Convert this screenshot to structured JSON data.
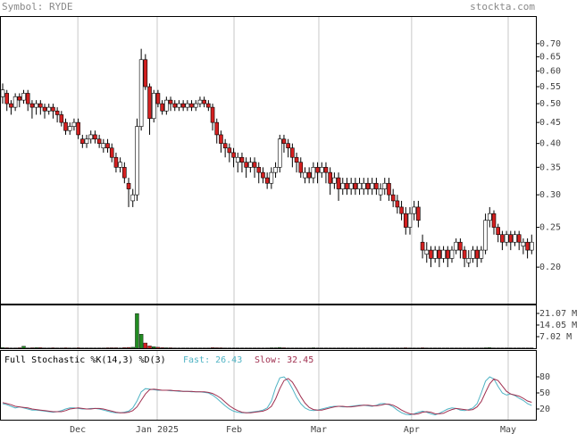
{
  "header": {
    "symbol": "Symbol: RYDE",
    "site": "stockta.com"
  },
  "chart_data": [
    {
      "type": "candlestick",
      "log_scale": true,
      "up_color": "#ffffff",
      "down_color": "#d42020",
      "xlim": [
        -0.64,
        127.0
      ],
      "ylim": [
        0.163,
        0.817
      ],
      "yticks": [
        {
          "value": 0.7,
          "label": "0.70"
        },
        0.65,
        {
          "value": 0.6,
          "label": "0.60"
        },
        0.55,
        {
          "value": 0.5,
          "label": "0.50"
        },
        0.45,
        {
          "value": 0.4,
          "label": "0.40"
        },
        0.35,
        {
          "value": 0.3,
          "label": "0.30"
        },
        0.25,
        {
          "value": 0.2,
          "label": "0.20"
        }
      ],
      "open": [
        0.52,
        0.53,
        0.5,
        0.49,
        0.52,
        0.51,
        0.53,
        0.5,
        0.49,
        0.5,
        0.49,
        0.48,
        0.49,
        0.48,
        0.47,
        0.45,
        0.43,
        0.44,
        0.45,
        0.41,
        0.4,
        0.41,
        0.42,
        0.41,
        0.39,
        0.4,
        0.39,
        0.37,
        0.35,
        0.35,
        0.32,
        0.29,
        0.3,
        0.44,
        0.64,
        0.55,
        0.46,
        0.53,
        0.5,
        0.48,
        0.51,
        0.5,
        0.49,
        0.5,
        0.49,
        0.5,
        0.49,
        0.5,
        0.51,
        0.5,
        0.49,
        0.45,
        0.42,
        0.4,
        0.39,
        0.38,
        0.36,
        0.37,
        0.36,
        0.35,
        0.36,
        0.35,
        0.34,
        0.33,
        0.32,
        0.34,
        0.35,
        0.41,
        0.4,
        0.39,
        0.37,
        0.36,
        0.33,
        0.34,
        0.33,
        0.35,
        0.34,
        0.35,
        0.34,
        0.32,
        0.33,
        0.31,
        0.32,
        0.31,
        0.32,
        0.31,
        0.31,
        0.32,
        0.31,
        0.32,
        0.3,
        0.31,
        0.32,
        0.3,
        0.29,
        0.28,
        0.27,
        0.25,
        0.27,
        0.28,
        0.23,
        0.215,
        0.22,
        0.21,
        0.22,
        0.21,
        0.22,
        0.21,
        0.22,
        0.23,
        0.22,
        0.205,
        0.21,
        0.22,
        0.21,
        0.22,
        0.26,
        0.27,
        0.25,
        0.24,
        0.23,
        0.24,
        0.23,
        0.24,
        0.225,
        0.23,
        0.22
      ],
      "high": [
        0.56,
        0.54,
        0.51,
        0.53,
        0.53,
        0.54,
        0.54,
        0.51,
        0.51,
        0.51,
        0.5,
        0.5,
        0.5,
        0.49,
        0.48,
        0.46,
        0.45,
        0.46,
        0.46,
        0.42,
        0.42,
        0.43,
        0.43,
        0.42,
        0.41,
        0.41,
        0.4,
        0.38,
        0.37,
        0.36,
        0.33,
        0.31,
        0.46,
        0.68,
        0.66,
        0.56,
        0.54,
        0.54,
        0.51,
        0.52,
        0.52,
        0.51,
        0.51,
        0.51,
        0.51,
        0.51,
        0.51,
        0.52,
        0.52,
        0.51,
        0.5,
        0.46,
        0.43,
        0.41,
        0.4,
        0.39,
        0.38,
        0.38,
        0.37,
        0.37,
        0.37,
        0.36,
        0.35,
        0.34,
        0.35,
        0.36,
        0.42,
        0.42,
        0.41,
        0.4,
        0.38,
        0.37,
        0.35,
        0.35,
        0.36,
        0.36,
        0.36,
        0.36,
        0.35,
        0.34,
        0.34,
        0.33,
        0.33,
        0.33,
        0.33,
        0.33,
        0.33,
        0.33,
        0.33,
        0.33,
        0.32,
        0.33,
        0.33,
        0.31,
        0.3,
        0.29,
        0.28,
        0.28,
        0.29,
        0.29,
        0.24,
        0.23,
        0.225,
        0.225,
        0.225,
        0.225,
        0.225,
        0.225,
        0.235,
        0.235,
        0.225,
        0.22,
        0.225,
        0.225,
        0.225,
        0.27,
        0.28,
        0.275,
        0.255,
        0.245,
        0.245,
        0.245,
        0.245,
        0.245,
        0.235,
        0.235,
        0.24
      ],
      "low": [
        0.5,
        0.48,
        0.47,
        0.48,
        0.49,
        0.5,
        0.48,
        0.46,
        0.47,
        0.47,
        0.46,
        0.47,
        0.46,
        0.45,
        0.44,
        0.42,
        0.42,
        0.43,
        0.41,
        0.39,
        0.39,
        0.4,
        0.4,
        0.39,
        0.38,
        0.38,
        0.36,
        0.34,
        0.34,
        0.32,
        0.28,
        0.28,
        0.29,
        0.43,
        0.54,
        0.42,
        0.45,
        0.49,
        0.47,
        0.47,
        0.48,
        0.48,
        0.48,
        0.48,
        0.48,
        0.48,
        0.48,
        0.49,
        0.49,
        0.48,
        0.43,
        0.4,
        0.38,
        0.37,
        0.36,
        0.35,
        0.34,
        0.34,
        0.33,
        0.34,
        0.33,
        0.32,
        0.32,
        0.31,
        0.31,
        0.33,
        0.34,
        0.38,
        0.37,
        0.35,
        0.34,
        0.33,
        0.32,
        0.32,
        0.32,
        0.32,
        0.33,
        0.32,
        0.3,
        0.31,
        0.29,
        0.3,
        0.3,
        0.3,
        0.3,
        0.3,
        0.3,
        0.3,
        0.3,
        0.3,
        0.29,
        0.3,
        0.29,
        0.28,
        0.27,
        0.26,
        0.24,
        0.24,
        0.26,
        0.25,
        0.21,
        0.205,
        0.2,
        0.205,
        0.2,
        0.205,
        0.2,
        0.205,
        0.215,
        0.21,
        0.2,
        0.2,
        0.205,
        0.2,
        0.205,
        0.215,
        0.25,
        0.24,
        0.23,
        0.22,
        0.225,
        0.22,
        0.225,
        0.22,
        0.215,
        0.21,
        0.215
      ],
      "close": [
        0.54,
        0.5,
        0.49,
        0.52,
        0.51,
        0.53,
        0.5,
        0.49,
        0.5,
        0.49,
        0.48,
        0.49,
        0.48,
        0.47,
        0.45,
        0.43,
        0.44,
        0.45,
        0.42,
        0.4,
        0.41,
        0.42,
        0.41,
        0.4,
        0.4,
        0.39,
        0.37,
        0.35,
        0.36,
        0.33,
        0.31,
        0.3,
        0.44,
        0.64,
        0.55,
        0.46,
        0.53,
        0.5,
        0.48,
        0.51,
        0.5,
        0.49,
        0.5,
        0.49,
        0.5,
        0.49,
        0.5,
        0.51,
        0.5,
        0.49,
        0.45,
        0.42,
        0.4,
        0.39,
        0.38,
        0.37,
        0.37,
        0.36,
        0.35,
        0.36,
        0.35,
        0.34,
        0.33,
        0.32,
        0.34,
        0.35,
        0.41,
        0.4,
        0.39,
        0.37,
        0.36,
        0.34,
        0.34,
        0.33,
        0.35,
        0.34,
        0.35,
        0.34,
        0.32,
        0.33,
        0.31,
        0.32,
        0.31,
        0.32,
        0.31,
        0.32,
        0.32,
        0.31,
        0.32,
        0.31,
        0.31,
        0.32,
        0.3,
        0.29,
        0.28,
        0.27,
        0.25,
        0.27,
        0.28,
        0.26,
        0.22,
        0.22,
        0.21,
        0.22,
        0.21,
        0.22,
        0.21,
        0.22,
        0.23,
        0.22,
        0.21,
        0.21,
        0.22,
        0.21,
        0.22,
        0.26,
        0.27,
        0.25,
        0.24,
        0.23,
        0.24,
        0.23,
        0.24,
        0.23,
        0.23,
        0.22,
        0.23
      ]
    },
    {
      "type": "volume",
      "up_color": "#228b22",
      "down_color": "#d42020",
      "xlim": [
        -0.64,
        127.0
      ],
      "ylim": [
        0,
        26.46
      ],
      "yticks": [
        {
          "value": 21.07,
          "label": "21.07 M"
        },
        {
          "value": 14.05,
          "label": "14.05 M"
        },
        {
          "value": 7.02,
          "label": "7.02 M"
        }
      ],
      "values": [
        0.4,
        0.3,
        0.2,
        0.2,
        0.3,
        1.2,
        0.2,
        0.3,
        0.4,
        0.4,
        0.2,
        0.2,
        0.3,
        0.2,
        0.2,
        0.3,
        0.2,
        0.2,
        0.3,
        0.2,
        0.2,
        0.2,
        0.2,
        0.2,
        0.2,
        0.3,
        0.3,
        0.3,
        0.2,
        0.4,
        0.5,
        0.6,
        21.0,
        8.5,
        3.2,
        1.4,
        0.9,
        0.6,
        0.4,
        0.3,
        0.3,
        0.2,
        0.2,
        0.2,
        0.2,
        0.2,
        0.2,
        0.2,
        0.2,
        0.2,
        0.4,
        0.3,
        0.3,
        0.2,
        0.2,
        0.2,
        0.2,
        0.2,
        0.2,
        0.2,
        0.2,
        0.2,
        0.2,
        0.2,
        0.3,
        0.3,
        0.5,
        0.3,
        0.2,
        0.2,
        0.2,
        0.2,
        0.2,
        0.2,
        0.3,
        0.2,
        0.2,
        0.2,
        0.2,
        0.2,
        0.2,
        0.2,
        0.2,
        0.2,
        0.2,
        0.2,
        0.2,
        0.2,
        0.2,
        0.2,
        0.2,
        0.2,
        0.2,
        0.2,
        0.2,
        0.2,
        0.3,
        0.2,
        0.2,
        0.2,
        0.3,
        0.2,
        0.2,
        0.2,
        0.2,
        0.2,
        0.2,
        0.2,
        0.2,
        0.2,
        0.2,
        0.2,
        0.2,
        0.2,
        0.2,
        0.3,
        0.4,
        0.2,
        0.2,
        0.2,
        0.2,
        0.2,
        0.2,
        0.2,
        0.2,
        0.2,
        0.2
      ]
    },
    {
      "type": "line",
      "title": "Full Stochastic %K(14,3) %D(3)",
      "xlim": [
        -0.64,
        127.0
      ],
      "ylim": [
        0,
        130
      ],
      "yticks": [
        80,
        50,
        20
      ],
      "xticks": [
        {
          "value": 17.9,
          "label": "Dec"
        },
        {
          "value": 36.8,
          "label": "Jan 2025"
        },
        {
          "value": 55.1,
          "label": "Feb"
        },
        {
          "value": 75.3,
          "label": "Mar"
        },
        {
          "value": 97.4,
          "label": "Apr"
        },
        {
          "value": 120.4,
          "label": "May"
        }
      ],
      "series": [
        {
          "name": "Fast: 26.43",
          "color": "#4fb3c4",
          "values": [
            30,
            28,
            25,
            22,
            24,
            22,
            20,
            18,
            18,
            17,
            16,
            15,
            14,
            15,
            17,
            20,
            22,
            22,
            21,
            20,
            20,
            21,
            21,
            20,
            18,
            16,
            14,
            13,
            13,
            14,
            16,
            22,
            35,
            52,
            58,
            57,
            56,
            55,
            55,
            55,
            54,
            54,
            53,
            53,
            53,
            52,
            52,
            52,
            51,
            50,
            46,
            40,
            33,
            26,
            20,
            16,
            14,
            13,
            13,
            14,
            15,
            16,
            18,
            22,
            35,
            60,
            78,
            80,
            72,
            58,
            42,
            30,
            22,
            18,
            17,
            18,
            20,
            22,
            24,
            25,
            25,
            24,
            24,
            25,
            26,
            27,
            27,
            26,
            25,
            27,
            30,
            30,
            28,
            24,
            18,
            13,
            10,
            9,
            11,
            14,
            16,
            14,
            11,
            9,
            12,
            16,
            20,
            22,
            21,
            18,
            17,
            19,
            22,
            30,
            50,
            72,
            80,
            76,
            62,
            50,
            46,
            48,
            45,
            40,
            36,
            30,
            26.43
          ]
        },
        {
          "name": "Slow: 32.45",
          "color": "#a03050",
          "values": [
            32,
            30,
            28,
            25,
            24,
            23,
            22,
            20,
            19,
            18,
            17,
            16,
            15,
            15,
            15,
            17,
            20,
            21,
            22,
            21,
            20,
            20,
            21,
            21,
            20,
            18,
            16,
            14,
            13,
            13,
            14,
            17,
            24,
            36,
            48,
            56,
            57,
            56,
            55,
            55,
            55,
            54,
            54,
            53,
            53,
            53,
            52,
            52,
            52,
            51,
            49,
            45,
            40,
            33,
            26,
            21,
            17,
            14,
            13,
            13,
            14,
            15,
            16,
            19,
            25,
            39,
            58,
            73,
            77,
            70,
            57,
            43,
            31,
            23,
            19,
            18,
            18,
            20,
            22,
            24,
            25,
            25,
            24,
            24,
            25,
            26,
            27,
            27,
            26,
            26,
            27,
            29,
            29,
            27,
            23,
            18,
            14,
            11,
            10,
            11,
            14,
            15,
            14,
            11,
            11,
            12,
            16,
            19,
            21,
            20,
            19,
            18,
            19,
            24,
            34,
            51,
            67,
            76,
            73,
            63,
            53,
            48,
            46,
            44,
            40,
            35,
            32.45
          ]
        }
      ]
    }
  ]
}
